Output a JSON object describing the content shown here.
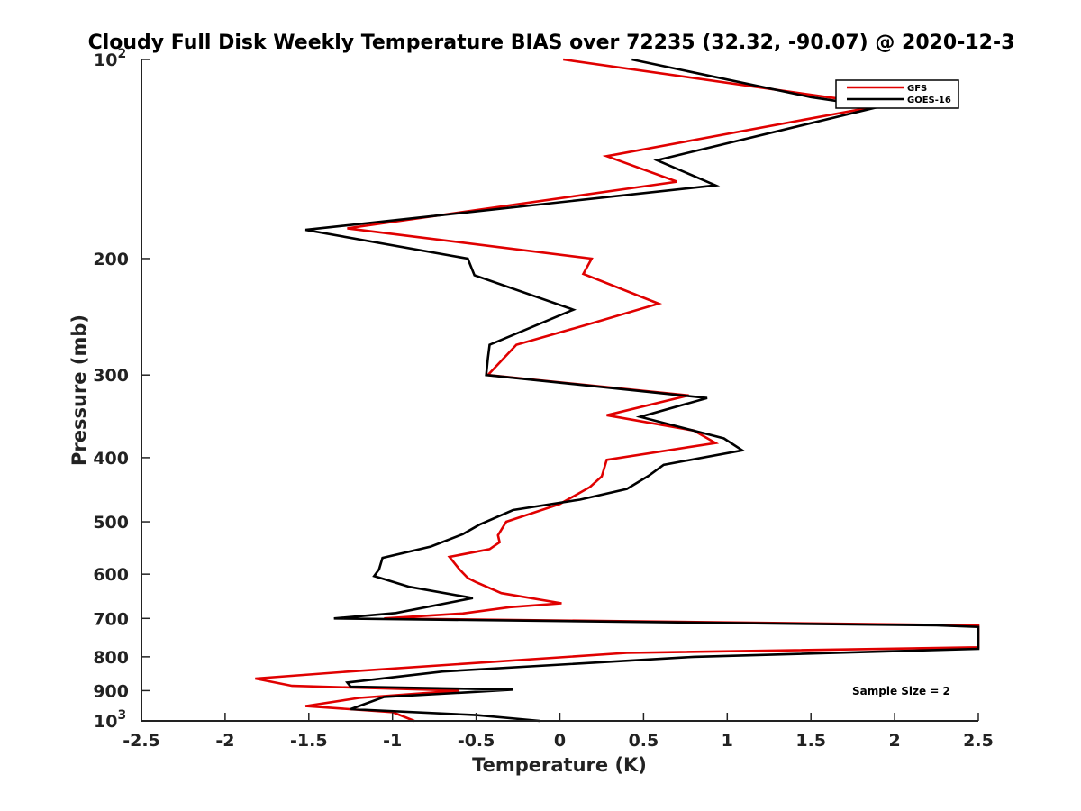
{
  "chart_data": {
    "type": "line",
    "title": "Cloudy Full Disk Weekly Temperature BIAS over 72235 (32.32, -90.07) @ 2020-12-3",
    "xlabel": "Temperature (K)",
    "ylabel": "Pressure (mb)",
    "xlim": [
      -2.5,
      2.5
    ],
    "ylim": [
      1000,
      100
    ],
    "y_scale": "log",
    "y_reversed": true,
    "xticks": [
      -2.5,
      -2,
      -1.5,
      -1,
      -0.5,
      0,
      0.5,
      1,
      1.5,
      2,
      2.5
    ],
    "xtick_labels": [
      "-2.5",
      "-2",
      "-1.5",
      "-1",
      "-0.5",
      "0",
      "0.5",
      "1",
      "1.5",
      "2",
      "2.5"
    ],
    "yticks": [
      {
        "value": 100,
        "label_base": "10",
        "label_exp": "2"
      },
      {
        "value": 200,
        "label_base": "200",
        "label_exp": ""
      },
      {
        "value": 300,
        "label_base": "300",
        "label_exp": ""
      },
      {
        "value": 400,
        "label_base": "400",
        "label_exp": ""
      },
      {
        "value": 500,
        "label_base": "500",
        "label_exp": ""
      },
      {
        "value": 600,
        "label_base": "600",
        "label_exp": ""
      },
      {
        "value": 700,
        "label_base": "700",
        "label_exp": ""
      },
      {
        "value": 800,
        "label_base": "800",
        "label_exp": ""
      },
      {
        "value": 900,
        "label_base": "900",
        "label_exp": ""
      },
      {
        "value": 1000,
        "label_base": "10",
        "label_exp": "3"
      }
    ],
    "grid": false,
    "legend_position": "top-right",
    "annotation": "Sample Size = 2",
    "series": [
      {
        "name": "GFS",
        "color": "#e00000",
        "points": [
          [
            0.02,
            100
          ],
          [
            1.6,
            114
          ],
          [
            1.95,
            117
          ],
          [
            0.28,
            140
          ],
          [
            0.7,
            153
          ],
          [
            -1.27,
            180
          ],
          [
            0.19,
            200
          ],
          [
            0.14,
            211
          ],
          [
            0.59,
            234
          ],
          [
            0.18,
            251
          ],
          [
            -0.26,
            270
          ],
          [
            -0.43,
            300
          ],
          [
            0.77,
            322
          ],
          [
            0.28,
            345
          ],
          [
            0.8,
            364
          ],
          [
            0.93,
            380
          ],
          [
            0.28,
            403
          ],
          [
            0.25,
            427
          ],
          [
            0.18,
            443
          ],
          [
            0.0,
            470
          ],
          [
            -0.32,
            500
          ],
          [
            -0.37,
            524
          ],
          [
            -0.36,
            537
          ],
          [
            -0.42,
            550
          ],
          [
            -0.66,
            565
          ],
          [
            -0.6,
            590
          ],
          [
            -0.55,
            608
          ],
          [
            -0.5,
            617
          ],
          [
            -0.35,
            641
          ],
          [
            0.01,
            664
          ],
          [
            -0.3,
            673
          ],
          [
            -0.58,
            688
          ],
          [
            -1.05,
            700
          ],
          [
            2.5,
            717
          ],
          [
            2.5,
            774
          ],
          [
            0.4,
            789
          ],
          [
            -1.2,
            840
          ],
          [
            -1.82,
            863
          ],
          [
            -1.6,
            885
          ],
          [
            -0.6,
            900
          ],
          [
            -1.2,
            923
          ],
          [
            -1.52,
            950
          ],
          [
            -1.0,
            970
          ],
          [
            -0.87,
            1000
          ]
        ]
      },
      {
        "name": "GOES-16",
        "color": "#000000",
        "points": [
          [
            0.43,
            100
          ],
          [
            1.5,
            114
          ],
          [
            1.9,
            118
          ],
          [
            0.58,
            142
          ],
          [
            0.93,
            155
          ],
          [
            -1.52,
            181
          ],
          [
            -0.55,
            200
          ],
          [
            -0.51,
            212
          ],
          [
            0.08,
            239
          ],
          [
            -0.42,
            270
          ],
          [
            -0.43,
            283
          ],
          [
            -0.44,
            300
          ],
          [
            0.88,
            325
          ],
          [
            0.48,
            347
          ],
          [
            0.98,
            374
          ],
          [
            1.09,
            390
          ],
          [
            0.62,
            410
          ],
          [
            0.53,
            426
          ],
          [
            0.4,
            446
          ],
          [
            0.12,
            463
          ],
          [
            -0.28,
            480
          ],
          [
            -0.48,
            505
          ],
          [
            -0.58,
            522
          ],
          [
            -0.77,
            545
          ],
          [
            -1.06,
            567
          ],
          [
            -1.08,
            590
          ],
          [
            -1.11,
            604
          ],
          [
            -0.9,
            627
          ],
          [
            -0.52,
            652
          ],
          [
            -0.98,
            687
          ],
          [
            -1.35,
            700
          ],
          [
            2.25,
            717
          ],
          [
            2.5,
            721
          ],
          [
            2.5,
            778
          ],
          [
            0.8,
            800
          ],
          [
            -0.7,
            842
          ],
          [
            -1.27,
            875
          ],
          [
            -1.25,
            888
          ],
          [
            -0.28,
            897
          ],
          [
            -0.54,
            905
          ],
          [
            -1.05,
            920
          ],
          [
            -1.25,
            960
          ],
          [
            -0.5,
            980
          ],
          [
            -0.12,
            1000
          ]
        ]
      }
    ]
  }
}
